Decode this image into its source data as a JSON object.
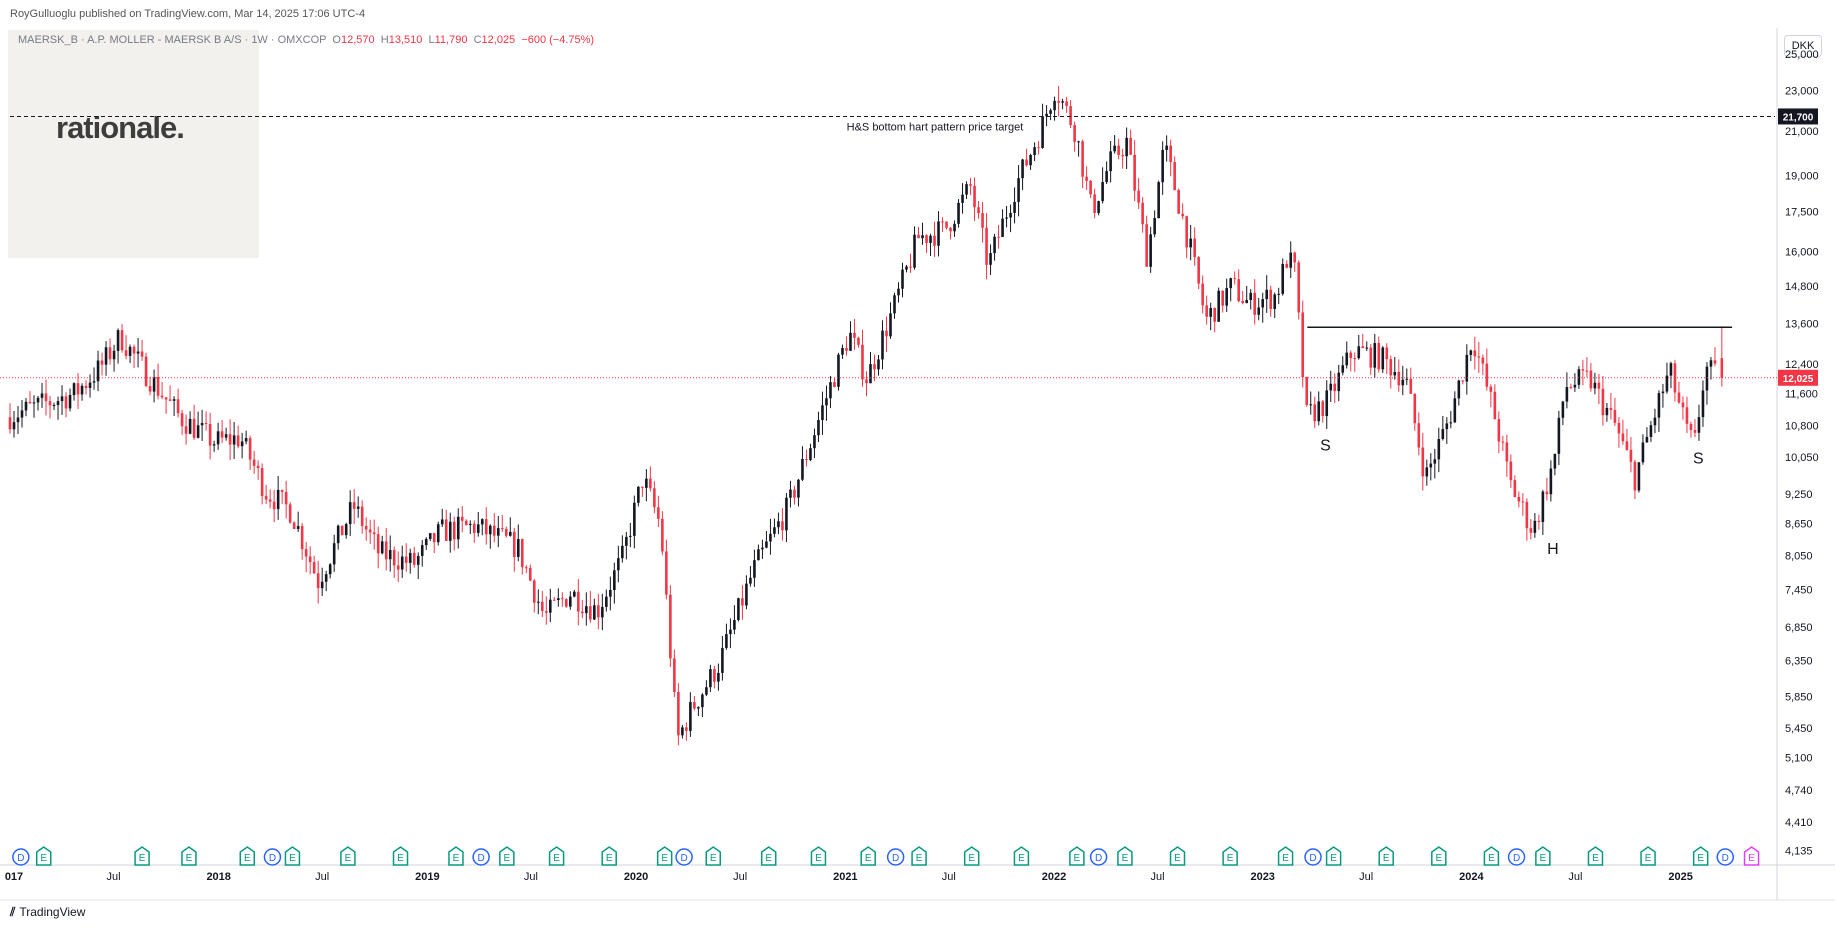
{
  "header": {
    "publisher": "RoyGulluoglu published on TradingView.com, Mar 14, 2025 17:06 UTC-4",
    "logo_text": "rationale."
  },
  "legend": {
    "symbol": "MAERSK_B · A.P. MOLLER - MAERSK B A/S · 1W · OMXCOP",
    "open_label": "O",
    "open": "12,570",
    "high_label": "H",
    "high": "13,510",
    "low_label": "L",
    "low": "11,790",
    "close_label": "C",
    "close": "12,025",
    "change": "−600 (−4.75%)"
  },
  "currency": "DKK",
  "footer": {
    "brand": "TradingView",
    "icon": "tradingview-logo-icon"
  },
  "colors": {
    "up": "#131722",
    "down": "#f23645",
    "price_line": "#f23645",
    "earnings": "#089981",
    "dividend": "#2962ff",
    "event": "#e040fb"
  },
  "chart_data": {
    "type": "candlestick",
    "interval": "1W",
    "y_scale": "log",
    "ylim": [
      4000,
      26500
    ],
    "xlim": [
      "2017-01-01",
      "2025-06-15"
    ],
    "x_ticks": [
      {
        "label": "017",
        "date": "2017-01-01"
      },
      {
        "label": "Jul",
        "date": "2017-07-01"
      },
      {
        "label": "2018",
        "date": "2018-01-01"
      },
      {
        "label": "Jul",
        "date": "2018-07-01"
      },
      {
        "label": "2019",
        "date": "2019-01-01"
      },
      {
        "label": "Jul",
        "date": "2019-07-01"
      },
      {
        "label": "2020",
        "date": "2020-01-01"
      },
      {
        "label": "Jul",
        "date": "2020-07-01"
      },
      {
        "label": "2021",
        "date": "2021-01-01"
      },
      {
        "label": "Jul",
        "date": "2021-07-01"
      },
      {
        "label": "2022",
        "date": "2022-01-01"
      },
      {
        "label": "Jul",
        "date": "2022-07-01"
      },
      {
        "label": "2023",
        "date": "2023-01-01"
      },
      {
        "label": "Jul",
        "date": "2023-07-01"
      },
      {
        "label": "2024",
        "date": "2024-01-01"
      },
      {
        "label": "Jul",
        "date": "2024-07-01"
      },
      {
        "label": "2025",
        "date": "2025-01-01"
      }
    ],
    "y_ticks": [
      25000,
      23000,
      21000,
      19000,
      17500,
      16000,
      14800,
      13600,
      12400,
      11600,
      10800,
      10050,
      9250,
      8650,
      8050,
      7450,
      6850,
      6350,
      5850,
      5450,
      5100,
      4740,
      4410,
      4135
    ],
    "price_path": [
      [
        "2017-01-01",
        11000
      ],
      [
        "2017-03-01",
        11300
      ],
      [
        "2017-05-01",
        11600
      ],
      [
        "2017-06-15",
        12300
      ],
      [
        "2017-07-20",
        13200
      ],
      [
        "2017-09-01",
        12200
      ],
      [
        "2017-11-01",
        11000
      ],
      [
        "2018-01-01",
        10400
      ],
      [
        "2018-02-15",
        10500
      ],
      [
        "2018-04-01",
        9300
      ],
      [
        "2018-05-15",
        8900
      ],
      [
        "2018-07-01",
        7600
      ],
      [
        "2018-09-01",
        9000
      ],
      [
        "2018-10-15",
        8100
      ],
      [
        "2018-12-15",
        7900
      ],
      [
        "2019-02-01",
        8500
      ],
      [
        "2019-04-01",
        8600
      ],
      [
        "2019-06-15",
        8200
      ],
      [
        "2019-08-01",
        7000
      ],
      [
        "2019-09-15",
        7400
      ],
      [
        "2019-11-01",
        7100
      ],
      [
        "2019-12-15",
        8000
      ],
      [
        "2020-01-20",
        9600
      ],
      [
        "2020-02-20",
        8600
      ],
      [
        "2020-03-20",
        5300
      ],
      [
        "2020-04-15",
        5700
      ],
      [
        "2020-06-01",
        6300
      ],
      [
        "2020-08-01",
        7800
      ],
      [
        "2020-10-01",
        9000
      ],
      [
        "2020-12-01",
        11300
      ],
      [
        "2021-01-15",
        13300
      ],
      [
        "2021-02-15",
        12000
      ],
      [
        "2021-04-01",
        14000
      ],
      [
        "2021-05-15",
        16500
      ],
      [
        "2021-07-01",
        16800
      ],
      [
        "2021-08-15",
        18500
      ],
      [
        "2021-09-15",
        15500
      ],
      [
        "2021-11-01",
        18500
      ],
      [
        "2021-12-15",
        21000
      ],
      [
        "2022-01-10",
        23200
      ],
      [
        "2022-02-15",
        21000
      ],
      [
        "2022-03-15",
        17500
      ],
      [
        "2022-04-15",
        19500
      ],
      [
        "2022-05-15",
        20500
      ],
      [
        "2022-06-20",
        15800
      ],
      [
        "2022-07-20",
        20300
      ],
      [
        "2022-09-01",
        16300
      ],
      [
        "2022-10-01",
        13700
      ],
      [
        "2022-11-15",
        14800
      ],
      [
        "2022-12-15",
        14200
      ],
      [
        "2023-02-01",
        14500
      ],
      [
        "2023-02-20",
        15800
      ],
      [
        "2023-03-05",
        15300
      ],
      [
        "2023-03-25",
        11000
      ],
      [
        "2023-05-01",
        11400
      ],
      [
        "2023-06-15",
        12800
      ],
      [
        "2023-08-01",
        12600
      ],
      [
        "2023-09-15",
        12000
      ],
      [
        "2023-10-20",
        9600
      ],
      [
        "2023-12-01",
        11000
      ],
      [
        "2024-01-10",
        13200
      ],
      [
        "2024-02-15",
        11200
      ],
      [
        "2024-03-15",
        9500
      ],
      [
        "2024-04-25",
        8500
      ],
      [
        "2024-06-01",
        10000
      ],
      [
        "2024-06-20",
        11800
      ],
      [
        "2024-08-01",
        12000
      ],
      [
        "2024-09-15",
        10800
      ],
      [
        "2024-10-20",
        9600
      ],
      [
        "2024-12-01",
        11400
      ],
      [
        "2024-12-20",
        12200
      ],
      [
        "2025-01-20",
        10600
      ],
      [
        "2025-02-01",
        10300
      ],
      [
        "2025-02-20",
        12300
      ],
      [
        "2025-03-14",
        12025
      ]
    ],
    "last": {
      "open": 12570,
      "high": 13510,
      "low": 11790,
      "close": 12025,
      "label": "12,025"
    },
    "hlines": [
      {
        "price": 21700,
        "style": "dashed",
        "label": "21,700",
        "text": "H&S bottom hart pattern price target",
        "from": "2017-01-01"
      },
      {
        "price": 13480,
        "style": "solid",
        "from": "2023-03-20",
        "to": "2025-04-01"
      }
    ],
    "annotations": [
      {
        "text": "S",
        "date": "2023-03-25",
        "price": 10300
      },
      {
        "text": "H",
        "date": "2024-04-25",
        "price": 8150
      },
      {
        "text": "S",
        "date": "2025-01-05",
        "price": 10000
      }
    ],
    "events": [
      {
        "date": "2017-01-20",
        "type": "D"
      },
      {
        "date": "2017-03-01",
        "type": "E"
      },
      {
        "date": "2017-08-20",
        "type": "E"
      },
      {
        "date": "2017-11-10",
        "type": "E"
      },
      {
        "date": "2018-02-20",
        "type": "E"
      },
      {
        "date": "2018-04-05",
        "type": "D"
      },
      {
        "date": "2018-05-10",
        "type": "E"
      },
      {
        "date": "2018-08-15",
        "type": "E"
      },
      {
        "date": "2018-11-15",
        "type": "E"
      },
      {
        "date": "2019-02-20",
        "type": "E"
      },
      {
        "date": "2019-04-05",
        "type": "D"
      },
      {
        "date": "2019-05-20",
        "type": "E"
      },
      {
        "date": "2019-08-15",
        "type": "E"
      },
      {
        "date": "2019-11-15",
        "type": "E"
      },
      {
        "date": "2020-02-20",
        "type": "E"
      },
      {
        "date": "2020-03-25",
        "type": "D"
      },
      {
        "date": "2020-05-15",
        "type": "E"
      },
      {
        "date": "2020-08-20",
        "type": "E"
      },
      {
        "date": "2020-11-15",
        "type": "E"
      },
      {
        "date": "2021-02-10",
        "type": "E"
      },
      {
        "date": "2021-03-30",
        "type": "D"
      },
      {
        "date": "2021-05-10",
        "type": "E"
      },
      {
        "date": "2021-08-10",
        "type": "E"
      },
      {
        "date": "2021-11-05",
        "type": "E"
      },
      {
        "date": "2022-02-10",
        "type": "E"
      },
      {
        "date": "2022-03-20",
        "type": "D"
      },
      {
        "date": "2022-05-05",
        "type": "E"
      },
      {
        "date": "2022-08-05",
        "type": "E"
      },
      {
        "date": "2022-11-05",
        "type": "E"
      },
      {
        "date": "2023-02-10",
        "type": "E"
      },
      {
        "date": "2023-03-30",
        "type": "D"
      },
      {
        "date": "2023-05-05",
        "type": "E"
      },
      {
        "date": "2023-08-05",
        "type": "E"
      },
      {
        "date": "2023-11-05",
        "type": "E"
      },
      {
        "date": "2024-02-05",
        "type": "E"
      },
      {
        "date": "2024-03-20",
        "type": "D"
      },
      {
        "date": "2024-05-05",
        "type": "E"
      },
      {
        "date": "2024-08-05",
        "type": "E"
      },
      {
        "date": "2024-11-05",
        "type": "E"
      },
      {
        "date": "2025-02-05",
        "type": "E"
      },
      {
        "date": "2025-03-20",
        "type": "D"
      },
      {
        "date": "2025-05-05",
        "type": "E",
        "future": true
      }
    ]
  }
}
